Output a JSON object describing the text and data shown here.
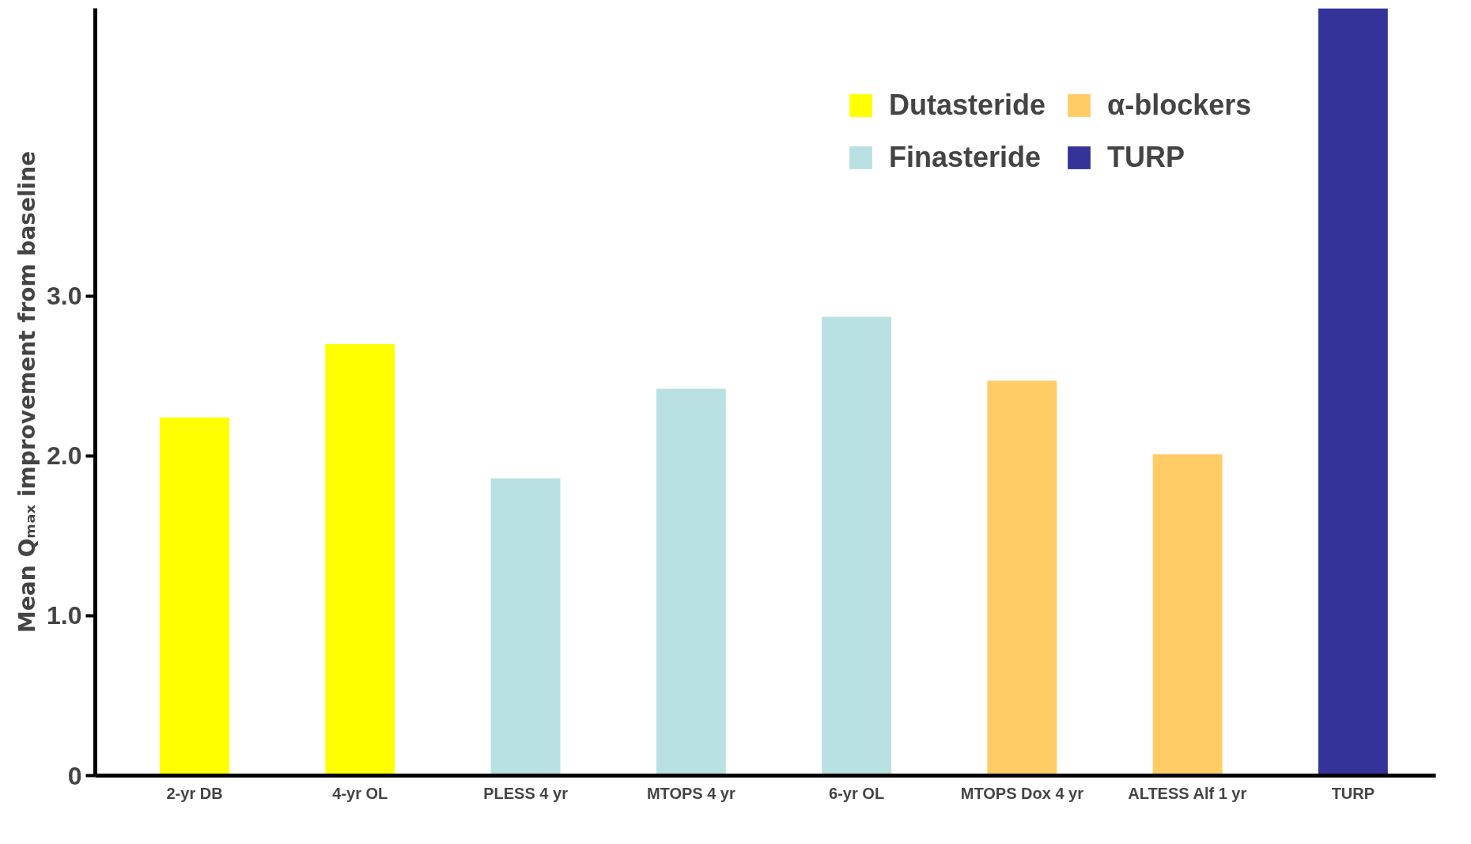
{
  "chart_data": {
    "type": "bar",
    "ylabel": "Mean Qₘₐₓ improvement from baseline",
    "categories": [
      "2-yr DB",
      "4-yr OL",
      "PLESS 4 yr",
      "MTOPS 4 yr",
      "6-yr OL",
      "MTOPS Dox 4 yr",
      "ALTESS Alf 1 yr",
      "TURP"
    ],
    "series": [
      {
        "name": "Dutasteride",
        "color": "#ffff00",
        "values": [
          2.24,
          2.7,
          null,
          null,
          null,
          null,
          null,
          null
        ]
      },
      {
        "name": "Finasteride",
        "color": "#b9e0e3",
        "values": [
          null,
          null,
          1.86,
          2.42,
          2.87,
          null,
          null,
          null
        ]
      },
      {
        "name": "α-blockers",
        "color": "#ffcc66",
        "values": [
          null,
          null,
          null,
          null,
          null,
          2.47,
          2.01,
          null
        ]
      },
      {
        "name": "TURP",
        "color": "#333399",
        "values": [
          null,
          null,
          null,
          null,
          null,
          null,
          null,
          4.8
        ]
      }
    ],
    "ylim": [
      0,
      4.8
    ],
    "yticks": [
      0,
      {
        "value": 1,
        "label": "1.0"
      },
      {
        "value": 2,
        "label": "2.0"
      },
      {
        "value": 3,
        "label": "3.0"
      }
    ],
    "grid": false,
    "legend": "top right"
  }
}
